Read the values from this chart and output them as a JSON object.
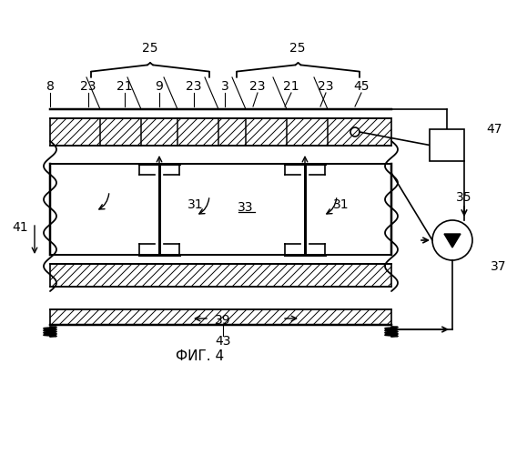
{
  "title": "ФИГ. 4",
  "bg_color": "#ffffff",
  "line_color": "#000000",
  "labels": {
    "25_left": "25",
    "25_right": "25",
    "8": "8",
    "23a": "23",
    "21a": "21",
    "9": "9",
    "23b": "23",
    "3": "3",
    "23c": "23",
    "21b": "21",
    "23d": "23",
    "45": "45",
    "47": "47",
    "41": "41",
    "31a": "31",
    "33": "33",
    "31b": "31",
    "35": "35",
    "37": "37",
    "39": "39",
    "43": "43"
  },
  "figsize": [
    5.79,
    5.0
  ],
  "dpi": 100
}
